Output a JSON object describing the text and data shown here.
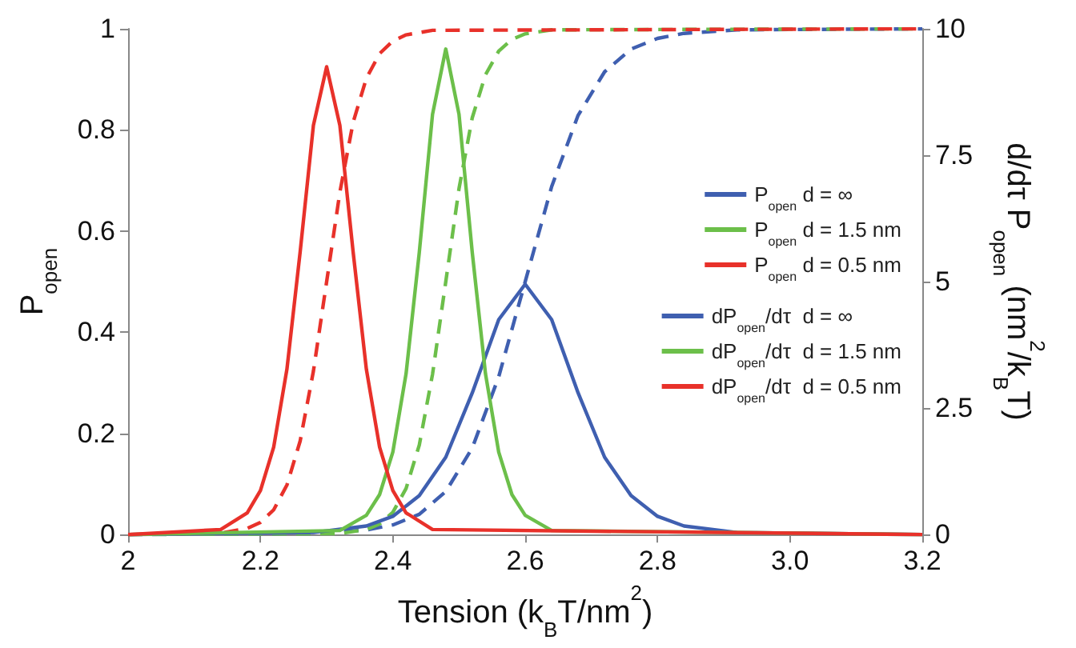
{
  "chart_data": {
    "type": "line",
    "xlabel": "Tension (k$_{B}$T/nm$^{2}$)",
    "ylabel": "P$_{open}$",
    "y2label": "d/dτ P$_{open}$ (nm$^{2}$/k$_{B}$T)",
    "xlim": [
      2,
      3.2
    ],
    "xticks": [
      2,
      2.2,
      2.4,
      2.6,
      2.8,
      {
        "value": 3,
        "label": "3.0"
      },
      3.2
    ],
    "ylim": [
      0,
      1
    ],
    "yticks": [
      0,
      0.2,
      0.4,
      0.6,
      0.8,
      1
    ],
    "y2lim": [
      0,
      10
    ],
    "y2ticks": [
      0,
      2.5,
      5,
      7.5,
      10
    ],
    "grid": false,
    "legend": "right",
    "marker": "none",
    "series": [
      {
        "name": "P$_{open}$ d = ∞",
        "color": "#3f5fb0",
        "line_style": "dashed",
        "x": [
          2,
          2.28,
          2.36,
          2.4,
          2.44,
          2.48,
          2.52,
          2.56,
          2.6,
          2.64,
          2.68,
          2.72,
          2.76,
          2.8,
          2.84,
          2.92,
          3.2
        ],
        "values": [
          0,
          0.002,
          0.009,
          0.019,
          0.04,
          0.085,
          0.171,
          0.312,
          0.5,
          0.688,
          0.829,
          0.915,
          0.96,
          0.981,
          0.991,
          0.998,
          1
        ]
      },
      {
        "name": "P$_{open}$ d = 1.5 nm",
        "color": "#6cbf4a",
        "line_style": "dashed",
        "x": [
          2,
          2.32,
          2.36,
          2.38,
          2.4,
          2.42,
          2.44,
          2.46,
          2.48,
          2.5,
          2.52,
          2.54,
          2.56,
          2.58,
          2.6,
          2.64,
          3.2
        ],
        "values": [
          0,
          0.002,
          0.01,
          0.021,
          0.044,
          0.091,
          0.177,
          0.317,
          0.5,
          0.684,
          0.824,
          0.909,
          0.956,
          0.979,
          0.99,
          0.998,
          1
        ]
      },
      {
        "name": "P$_{open}$ d = 0.5 nm",
        "color": "#e8312a",
        "line_style": "dashed",
        "x": [
          2,
          2.14,
          2.18,
          2.2,
          2.22,
          2.24,
          2.26,
          2.28,
          2.3,
          2.32,
          2.34,
          2.36,
          2.38,
          2.4,
          2.42,
          2.46,
          3.2
        ],
        "values": [
          0,
          0.003,
          0.012,
          0.024,
          0.049,
          0.098,
          0.185,
          0.323,
          0.5,
          0.677,
          0.815,
          0.902,
          0.951,
          0.976,
          0.988,
          0.997,
          1
        ]
      },
      {
        "name": "dP$_{open}$/dτ  d = ∞",
        "color": "#3f5fb0",
        "line_style": "solid",
        "axis": "y2",
        "x": [
          2,
          2.28,
          2.36,
          2.4,
          2.44,
          2.48,
          2.52,
          2.56,
          2.6,
          2.64,
          2.68,
          2.72,
          2.76,
          2.8,
          2.84,
          2.92,
          3.2
        ],
        "values": [
          0,
          0.04,
          0.17,
          0.36,
          0.77,
          1.53,
          2.8,
          4.25,
          4.95,
          4.25,
          2.8,
          1.53,
          0.77,
          0.36,
          0.17,
          0.04,
          0
        ]
      },
      {
        "name": "dP$_{open}$/dτ  d = 1.5 nm",
        "color": "#6cbf4a",
        "line_style": "solid",
        "axis": "y2",
        "x": [
          2,
          2.32,
          2.36,
          2.38,
          2.4,
          2.42,
          2.44,
          2.46,
          2.48,
          2.5,
          2.52,
          2.54,
          2.56,
          2.58,
          2.6,
          2.64,
          3.2
        ],
        "values": [
          0,
          0.08,
          0.38,
          0.79,
          1.63,
          3.18,
          5.58,
          8.31,
          9.6,
          8.31,
          5.58,
          3.18,
          1.63,
          0.79,
          0.38,
          0.08,
          0
        ]
      },
      {
        "name": "dP$_{open}$/dτ  d = 0.5 nm",
        "color": "#e8312a",
        "line_style": "solid",
        "axis": "y2",
        "x": [
          2,
          2.14,
          2.18,
          2.2,
          2.22,
          2.24,
          2.26,
          2.28,
          2.3,
          2.32,
          2.34,
          2.36,
          2.38,
          2.4,
          2.42,
          2.46,
          3.2
        ],
        "values": [
          0,
          0.1,
          0.43,
          0.87,
          1.73,
          3.27,
          5.59,
          8.09,
          9.25,
          8.09,
          5.59,
          3.27,
          1.73,
          0.87,
          0.43,
          0.1,
          0
        ]
      }
    ]
  }
}
